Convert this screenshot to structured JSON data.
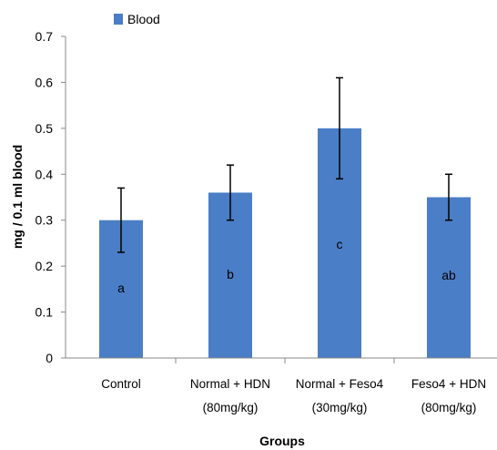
{
  "chart_data": {
    "type": "bar",
    "categories": [
      [
        "Control"
      ],
      [
        "Normal + HDN",
        "(80mg/kg)"
      ],
      [
        "Normal + Feso4",
        "(30mg/kg)"
      ],
      [
        "Feso4 + HDN",
        "(80mg/kg)"
      ]
    ],
    "series": [
      {
        "name": "Blood",
        "color": "#4a7ec6",
        "values": [
          0.3,
          0.36,
          0.5,
          0.35
        ],
        "error_upper": [
          0.37,
          0.42,
          0.61,
          0.4
        ],
        "error_lower": [
          0.23,
          0.3,
          0.39,
          0.3
        ],
        "bar_labels": [
          "a",
          "b",
          "c",
          "ab"
        ]
      }
    ],
    "xlabel": "Groups",
    "ylabel": "mg / 0.1 ml blood",
    "ylim": [
      0,
      0.7
    ],
    "yticks": [
      "0",
      "0.1",
      "0.2",
      "0.3",
      "0.4",
      "0.5",
      "0.6",
      "0.7"
    ],
    "grid": false,
    "legend_position": "top-left"
  }
}
